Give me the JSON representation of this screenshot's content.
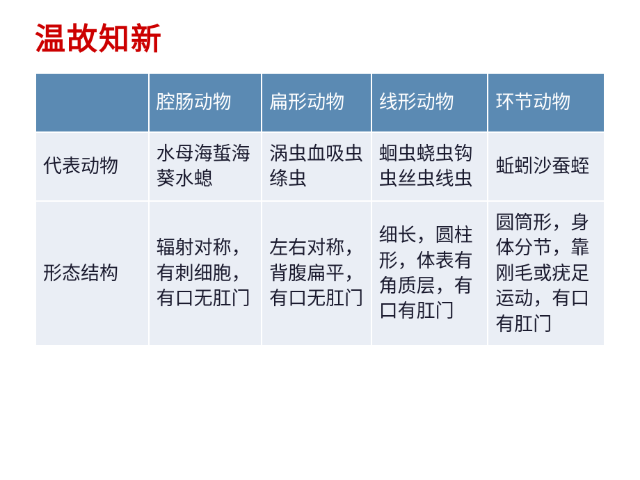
{
  "title": "温故知新",
  "table": {
    "header_bg": "#5b8ab3",
    "header_text_color": "#ffffff",
    "cell_bg": "#eaeef5",
    "cell_text_color": "#1a1a2e",
    "border_color": "#ffffff",
    "font_size": 27,
    "columns": [
      "",
      "腔肠动物",
      "扁形动物",
      "线形动物",
      "环节动物"
    ],
    "rows": [
      {
        "label": "代表动物",
        "cells": [
          "水母海蜇海葵水螅",
          "涡虫血吸虫绦虫",
          "蛔虫蛲虫钩虫丝虫线虫",
          "蚯蚓沙蚕蛭"
        ]
      },
      {
        "label": "形态结构",
        "cells": [
          "辐射对称，有刺细胞，有口无肛门",
          "左右对称，背腹扁平，有口无肛门",
          "细长，圆柱形，体表有角质层，有口有肛门",
          "圆筒形，身体分节，靠刚毛或疣足运动，有口有肛门"
        ]
      }
    ]
  },
  "title_color": "#cc0000",
  "title_fontsize": 44
}
